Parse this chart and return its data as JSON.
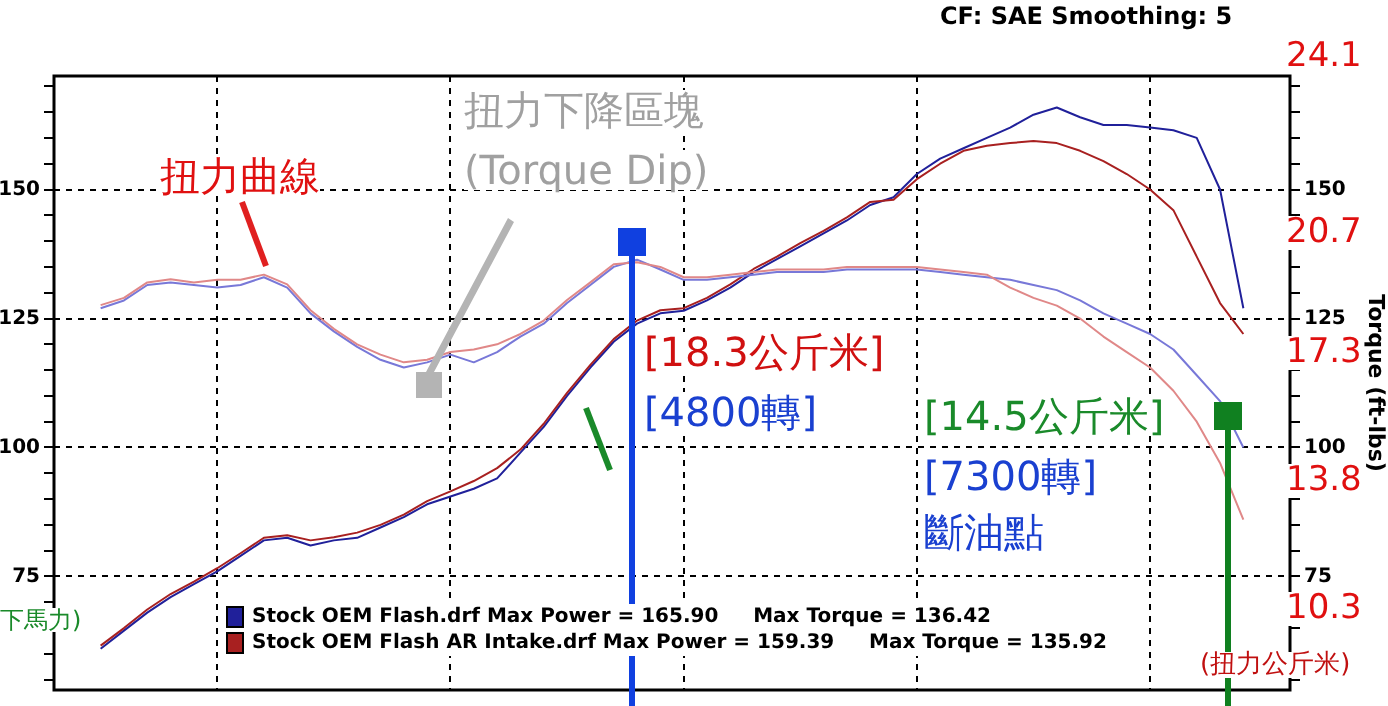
{
  "chart_data": {
    "type": "line",
    "categories": [
      null,
      null,
      null,
      null,
      null,
      null,
      null,
      null,
      null,
      null,
      null,
      null,
      null,
      null,
      null,
      null,
      null,
      null,
      null,
      null,
      null,
      null,
      null,
      null,
      null,
      null,
      null,
      null,
      null,
      null,
      null,
      null,
      null,
      null,
      null,
      null,
      null,
      null,
      null,
      null,
      null,
      null,
      null,
      null,
      null,
      null,
      null,
      null,
      null,
      null,
      null,
      null,
      null,
      null
    ],
    "series": [
      {
        "name": "Stock OEM Flash.drf Max Power = 165.90     Max Torque = 136.42",
        "color": "#20209a",
        "values": [
          null,
          null,
          61,
          64.5,
          68,
          71,
          73.5,
          76,
          79,
          82,
          82.5,
          81,
          82,
          82.5,
          84.5,
          86.5,
          89,
          90.5,
          92,
          94,
          99,
          104,
          110,
          115.5,
          120.5,
          124,
          126,
          126.5,
          128.5,
          131,
          134,
          136.5,
          139,
          141.5,
          144,
          147,
          148.5,
          153,
          156,
          158,
          160,
          162,
          164.5,
          165.9,
          164,
          162.5,
          162.5,
          162,
          161.5,
          160,
          150,
          127,
          null,
          null
        ]
      },
      {
        "name": "Stock OEM Flash AR Intake.drf Max Power = 159.39     Max Torque = 135.92",
        "color": "#a82020",
        "values": [
          null,
          null,
          61.6,
          65,
          68.6,
          71.6,
          74,
          76.6,
          79.5,
          82.5,
          83,
          82,
          82.6,
          83.5,
          85,
          87,
          89.6,
          91.5,
          93.5,
          96,
          99.6,
          104.6,
          110.6,
          116,
          121,
          124.6,
          126.6,
          127,
          129,
          131.6,
          134.6,
          137,
          139.6,
          142,
          144.6,
          147.6,
          148,
          152,
          155,
          157.5,
          158.5,
          159,
          159.4,
          159,
          157.5,
          155.5,
          153,
          150,
          146,
          137,
          128,
          122,
          null,
          null
        ]
      },
      {
        "color": "#7878d8",
        "values": [
          null,
          null,
          127,
          128.5,
          131.5,
          132,
          131.5,
          131,
          131.5,
          133,
          131,
          126,
          122.5,
          119.5,
          117,
          115.5,
          116.5,
          118,
          116.5,
          118.5,
          121.5,
          124,
          128,
          131.5,
          135,
          136.4,
          134.5,
          132.5,
          132.5,
          133,
          133.5,
          134,
          134,
          134,
          134.5,
          134.5,
          134.5,
          134.5,
          134,
          133.5,
          133,
          132.5,
          131.5,
          130.5,
          128.5,
          126,
          124,
          122,
          119,
          114,
          109,
          100,
          null,
          null
        ]
      },
      {
        "color": "#e08888",
        "values": [
          null,
          null,
          127.6,
          129,
          132,
          132.6,
          132,
          132.5,
          132.5,
          133.5,
          131.6,
          126.6,
          123,
          120,
          118,
          116.5,
          117,
          118.5,
          119,
          120,
          122,
          124.6,
          128.6,
          132,
          135.5,
          135.9,
          135,
          133,
          133,
          133.5,
          134,
          134.5,
          134.5,
          134.5,
          135,
          135,
          135,
          135,
          134.5,
          134,
          133.5,
          131,
          129,
          127.5,
          125,
          121.5,
          118.5,
          115.5,
          111,
          105,
          97,
          86,
          null,
          null
        ]
      }
    ],
    "ylim": [
      53,
      172
    ],
    "yticks": [
      {
        "value": 55,
        "label": null
      },
      {
        "value": 60,
        "label": null
      },
      {
        "value": 65,
        "label": null
      },
      {
        "value": 70,
        "label": null
      },
      75,
      {
        "value": 80,
        "label": null
      },
      {
        "value": 85,
        "label": null
      },
      {
        "value": 90,
        "label": null
      },
      {
        "value": 95,
        "label": null
      },
      100,
      {
        "value": 105,
        "label": null
      },
      {
        "value": 110,
        "label": null
      },
      {
        "value": 115,
        "label": null
      },
      {
        "value": 120,
        "label": null
      },
      125,
      {
        "value": 130,
        "label": null
      },
      {
        "value": 135,
        "label": null
      },
      {
        "value": 140,
        "label": null
      },
      {
        "value": 145,
        "label": null
      },
      150,
      {
        "value": 155,
        "label": null
      },
      {
        "value": 160,
        "label": null
      },
      {
        "value": 165,
        "label": null
      },
      {
        "value": 170,
        "label": null
      }
    ],
    "y2lim": [
      53,
      172
    ],
    "y2ticks": [
      {
        "value": 55,
        "label": null
      },
      {
        "value": 60,
        "label": null
      },
      {
        "value": 65,
        "label": null
      },
      {
        "value": 70,
        "label": null
      },
      75,
      {
        "value": 80,
        "label": null
      },
      {
        "value": 85,
        "label": null
      },
      {
        "value": 90,
        "label": null
      },
      {
        "value": 95,
        "label": null
      },
      100,
      {
        "value": 105,
        "label": null
      },
      {
        "value": 110,
        "label": null
      },
      {
        "value": 115,
        "label": null
      },
      {
        "value": 120,
        "label": null
      },
      125,
      {
        "value": 130,
        "label": null
      },
      {
        "value": 135,
        "label": null
      },
      {
        "value": 140,
        "label": null
      },
      {
        "value": 145,
        "label": null
      },
      150,
      {
        "value": 155,
        "label": null
      },
      {
        "value": 160,
        "label": null
      },
      {
        "value": 165,
        "label": null
      },
      {
        "value": 170,
        "label": null
      }
    ],
    "y2label": "Torque (ft-lbs)",
    "tick_labels": "y",
    "grid": true,
    "legend": "bottom left",
    "marker": "none",
    "line_style": "solid",
    "annotations": [
      "CF: SAE  Smoothing: 5",
      "扭力曲線",
      "扭力下降區塊",
      "(Torque Dip)",
      "[18.3公斤米]",
      "[4800轉]",
      "[14.5公斤米]",
      "[7300轉]",
      "斷油點",
      "24.1",
      "20.7",
      "17.3",
      "13.8",
      "10.3",
      "(扭力公斤米)",
      "下馬力)"
    ]
  }
}
